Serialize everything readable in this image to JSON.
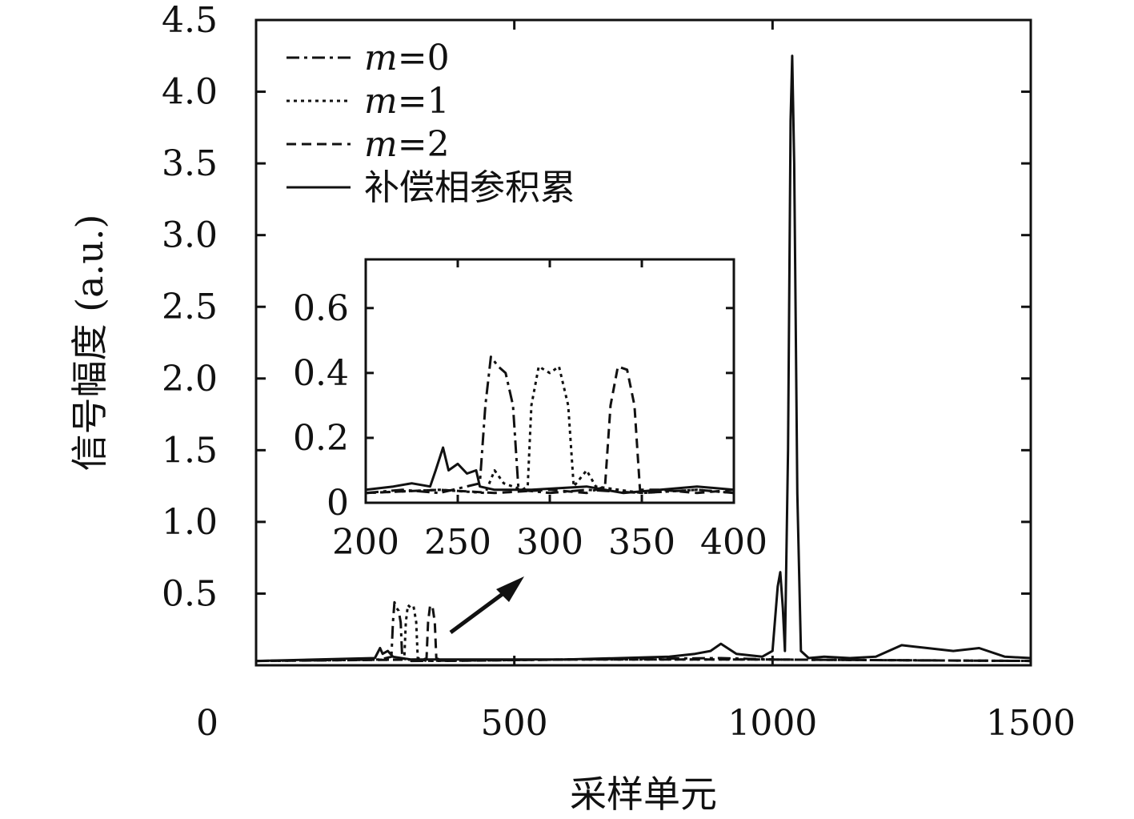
{
  "chart_data": {
    "type": "line",
    "title": "",
    "xlabel": "采样单元",
    "ylabel": "信号幅度 (a.u.)",
    "xlim": [
      0,
      1500
    ],
    "ylim": [
      0,
      4.5
    ],
    "x_ticks": [
      0,
      500,
      1000,
      1500
    ],
    "y_ticks": [
      0.5,
      1.0,
      1.5,
      2.0,
      2.5,
      3.0,
      3.5,
      4.0,
      4.5
    ],
    "x_tick_labels": [
      "0",
      "500",
      "1000",
      "1500"
    ],
    "y_tick_labels": [
      "0.5",
      "1.0",
      "1.5",
      "2.0",
      "2.5",
      "3.0",
      "3.5",
      "4.0",
      "4.5"
    ],
    "legend_position": "top-left",
    "grid": false,
    "series": [
      {
        "name": "m=0",
        "legend_italic_part": "m",
        "legend_rest": "=0",
        "style": "dashdot",
        "points": [
          [
            0,
            0.03
          ],
          [
            240,
            0.04
          ],
          [
            262,
            0.06
          ],
          [
            265,
            0.3
          ],
          [
            268,
            0.44
          ],
          [
            272,
            0.4
          ],
          [
            276,
            0.38
          ],
          [
            280,
            0.3
          ],
          [
            283,
            0.05
          ],
          [
            300,
            0.03
          ],
          [
            600,
            0.04
          ],
          [
            900,
            0.05
          ],
          [
            1000,
            0.04
          ],
          [
            1500,
            0.03
          ]
        ]
      },
      {
        "name": "m=1",
        "legend_italic_part": "m",
        "legend_rest": "=1",
        "style": "dotted",
        "points": [
          [
            0,
            0.03
          ],
          [
            280,
            0.04
          ],
          [
            287,
            0.05
          ],
          [
            290,
            0.3
          ],
          [
            294,
            0.42
          ],
          [
            300,
            0.4
          ],
          [
            305,
            0.41
          ],
          [
            310,
            0.3
          ],
          [
            313,
            0.05
          ],
          [
            330,
            0.03
          ],
          [
            600,
            0.04
          ],
          [
            1000,
            0.04
          ],
          [
            1500,
            0.03
          ]
        ]
      },
      {
        "name": "m=2",
        "legend_italic_part": "m",
        "legend_rest": "=2",
        "style": "dashed",
        "points": [
          [
            0,
            0.03
          ],
          [
            325,
            0.04
          ],
          [
            330,
            0.05
          ],
          [
            333,
            0.3
          ],
          [
            337,
            0.42
          ],
          [
            342,
            0.4
          ],
          [
            346,
            0.3
          ],
          [
            349,
            0.05
          ],
          [
            360,
            0.03
          ],
          [
            600,
            0.04
          ],
          [
            1000,
            0.04
          ],
          [
            1500,
            0.03
          ]
        ]
      },
      {
        "name": "补偿相参积累",
        "legend_italic_part": "",
        "legend_rest": "补偿相参积累",
        "style": "solid",
        "points": [
          [
            0,
            0.03
          ],
          [
            230,
            0.05
          ],
          [
            240,
            0.12
          ],
          [
            245,
            0.08
          ],
          [
            255,
            0.1
          ],
          [
            265,
            0.06
          ],
          [
            300,
            0.04
          ],
          [
            600,
            0.04
          ],
          [
            800,
            0.06
          ],
          [
            850,
            0.08
          ],
          [
            880,
            0.1
          ],
          [
            900,
            0.15
          ],
          [
            930,
            0.08
          ],
          [
            980,
            0.06
          ],
          [
            1000,
            0.1
          ],
          [
            1010,
            0.55
          ],
          [
            1015,
            0.65
          ],
          [
            1020,
            0.4
          ],
          [
            1024,
            0.1
          ],
          [
            1030,
            1.5
          ],
          [
            1035,
            3.8
          ],
          [
            1038,
            4.25
          ],
          [
            1042,
            3.5
          ],
          [
            1048,
            1.2
          ],
          [
            1055,
            0.1
          ],
          [
            1070,
            0.05
          ],
          [
            1100,
            0.06
          ],
          [
            1150,
            0.05
          ],
          [
            1200,
            0.06
          ],
          [
            1250,
            0.14
          ],
          [
            1300,
            0.12
          ],
          [
            1350,
            0.1
          ],
          [
            1400,
            0.12
          ],
          [
            1450,
            0.06
          ],
          [
            1500,
            0.05
          ]
        ]
      }
    ],
    "inset": {
      "xlim": [
        200,
        400
      ],
      "ylim": [
        0,
        0.75
      ],
      "x_ticks": [
        200,
        250,
        300,
        350,
        400
      ],
      "y_ticks": [
        0,
        0.2,
        0.4,
        0.6
      ],
      "x_tick_labels": [
        "200",
        "250",
        "300",
        "350",
        "400"
      ],
      "y_tick_labels": [
        "0",
        "0.2",
        "0.4",
        "0.6"
      ],
      "series": [
        {
          "name": "m=0",
          "style": "dashdot",
          "points": [
            [
              200,
              0.03
            ],
            [
              220,
              0.04
            ],
            [
              240,
              0.03
            ],
            [
              262,
              0.06
            ],
            [
              265,
              0.3
            ],
            [
              268,
              0.45
            ],
            [
              272,
              0.42
            ],
            [
              276,
              0.4
            ],
            [
              280,
              0.3
            ],
            [
              283,
              0.04
            ],
            [
              300,
              0.03
            ],
            [
              320,
              0.04
            ],
            [
              350,
              0.03
            ],
            [
              380,
              0.04
            ],
            [
              400,
              0.03
            ]
          ]
        },
        {
          "name": "m=1",
          "style": "dotted",
          "points": [
            [
              200,
              0.03
            ],
            [
              240,
              0.04
            ],
            [
              265,
              0.03
            ],
            [
              270,
              0.1
            ],
            [
              275,
              0.06
            ],
            [
              285,
              0.04
            ],
            [
              288,
              0.05
            ],
            [
              290,
              0.3
            ],
            [
              294,
              0.42
            ],
            [
              300,
              0.4
            ],
            [
              305,
              0.42
            ],
            [
              310,
              0.3
            ],
            [
              313,
              0.05
            ],
            [
              320,
              0.1
            ],
            [
              325,
              0.05
            ],
            [
              350,
              0.03
            ],
            [
              380,
              0.04
            ],
            [
              400,
              0.03
            ]
          ]
        },
        {
          "name": "m=2",
          "style": "dashed",
          "points": [
            [
              200,
              0.03
            ],
            [
              240,
              0.04
            ],
            [
              270,
              0.03
            ],
            [
              300,
              0.04
            ],
            [
              320,
              0.03
            ],
            [
              330,
              0.05
            ],
            [
              333,
              0.3
            ],
            [
              337,
              0.42
            ],
            [
              342,
              0.41
            ],
            [
              346,
              0.3
            ],
            [
              349,
              0.04
            ],
            [
              360,
              0.04
            ],
            [
              380,
              0.03
            ],
            [
              400,
              0.04
            ]
          ]
        },
        {
          "name": "补偿相参积累",
          "style": "solid",
          "points": [
            [
              200,
              0.04
            ],
            [
              215,
              0.05
            ],
            [
              225,
              0.06
            ],
            [
              235,
              0.05
            ],
            [
              238,
              0.1
            ],
            [
              242,
              0.17
            ],
            [
              245,
              0.1
            ],
            [
              250,
              0.12
            ],
            [
              255,
              0.09
            ],
            [
              260,
              0.1
            ],
            [
              262,
              0.05
            ],
            [
              270,
              0.04
            ],
            [
              290,
              0.04
            ],
            [
              320,
              0.05
            ],
            [
              340,
              0.03
            ],
            [
              360,
              0.04
            ],
            [
              380,
              0.05
            ],
            [
              400,
              0.04
            ]
          ]
        }
      ]
    }
  }
}
